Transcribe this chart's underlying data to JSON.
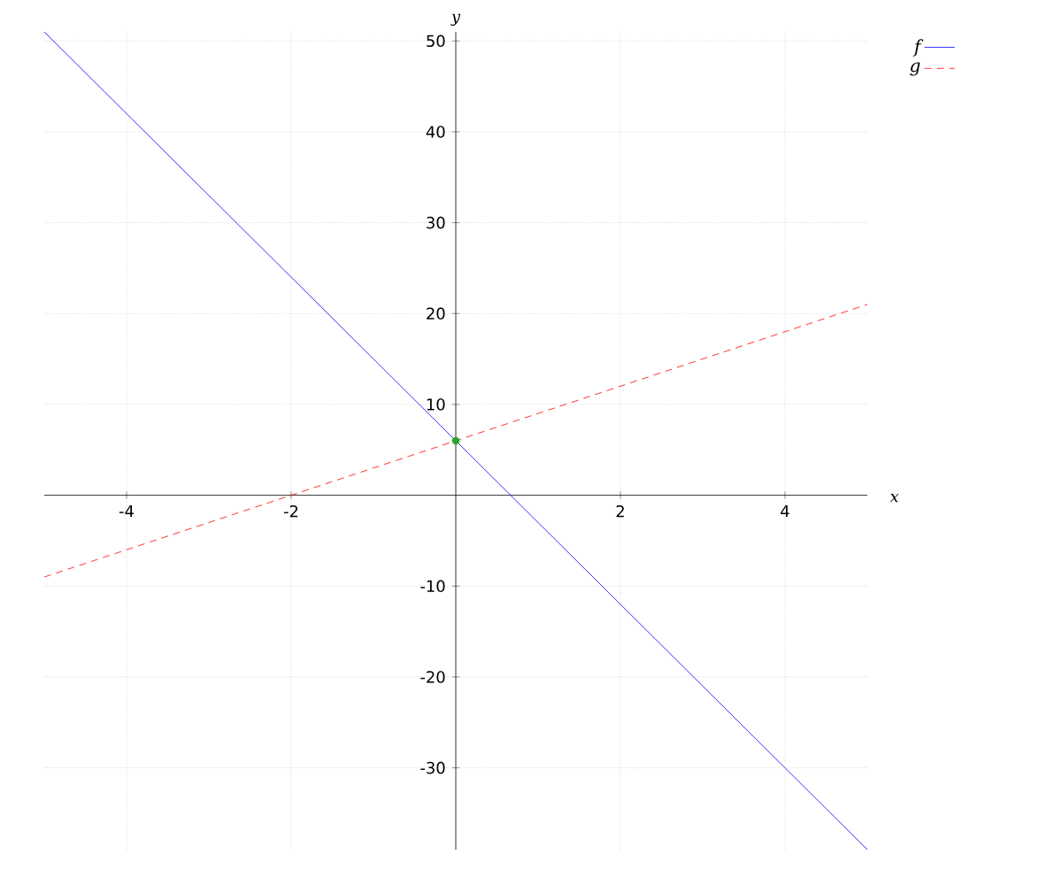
{
  "chart_data": {
    "type": "line",
    "xlabel": "x",
    "ylabel": "y",
    "xlim": [
      -5,
      5
    ],
    "ylim": [
      -39,
      51
    ],
    "xticks": [
      -4,
      -2,
      2,
      4
    ],
    "yticks": [
      -30,
      -20,
      -10,
      10,
      20,
      30,
      40,
      50
    ],
    "grid": true,
    "legend": "top right",
    "series": [
      {
        "name": "f",
        "color": "#0000ff",
        "line_style": "solid",
        "x": [
          -5,
          5
        ],
        "values": [
          51,
          -39
        ]
      },
      {
        "name": "g",
        "color": "#ff0000",
        "line_style": "dashed",
        "x": [
          -5,
          5
        ],
        "values": [
          -9,
          21
        ]
      },
      {
        "type": "scatter",
        "color": "#2ca02c",
        "marker": "circle",
        "x": [
          0
        ],
        "values": [
          6
        ]
      }
    ]
  }
}
